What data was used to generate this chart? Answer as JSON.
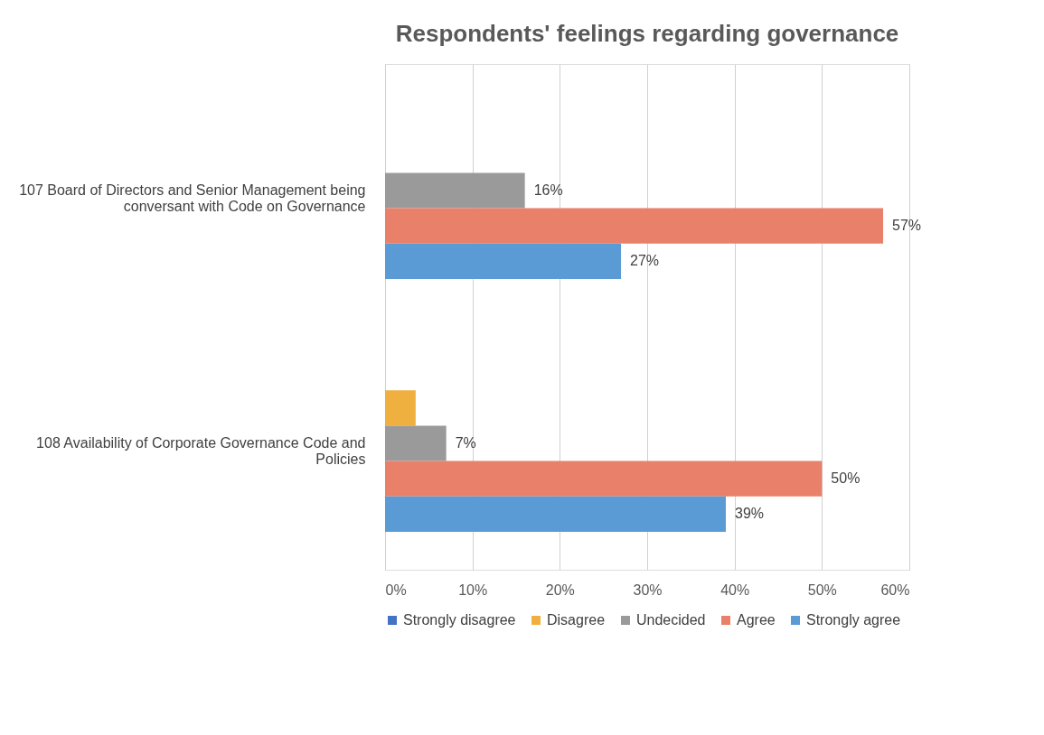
{
  "chart_data": {
    "type": "bar",
    "orientation": "horizontal",
    "title": "Respondents' feelings regarding governance",
    "categories": [
      "107 Board of Directors and Senior Management being conversant with Code on Governance",
      "108 Availability of Corporate Governance Code and Policies"
    ],
    "series": [
      {
        "name": "Strongly disagree",
        "color": "#4472c4",
        "values": [
          null,
          null
        ]
      },
      {
        "name": "Disagree",
        "color": "#f0b040",
        "values": [
          null,
          3.5
        ]
      },
      {
        "name": "Undecided",
        "color": "#9a9a9a",
        "values": [
          16,
          7
        ],
        "value_labels": [
          "16%",
          "7%"
        ]
      },
      {
        "name": "Agree",
        "color": "#e8806a",
        "values": [
          57,
          50
        ],
        "value_labels": [
          "57%",
          "50%"
        ]
      },
      {
        "name": "Strongly agree",
        "color": "#5b9bd5",
        "values": [
          27,
          39
        ],
        "value_labels": [
          "27%",
          "39%"
        ]
      }
    ],
    "xlim": [
      0,
      60
    ],
    "xticks": [
      {
        "value": 0,
        "label": "0%"
      },
      {
        "value": 10,
        "label": "10%"
      },
      {
        "value": 20,
        "label": "20%"
      },
      {
        "value": 30,
        "label": "30%"
      },
      {
        "value": 40,
        "label": "40%"
      },
      {
        "value": 50,
        "label": "50%"
      },
      {
        "value": 60,
        "label": "60%"
      }
    ],
    "grid": "x",
    "legend": "bottom"
  }
}
